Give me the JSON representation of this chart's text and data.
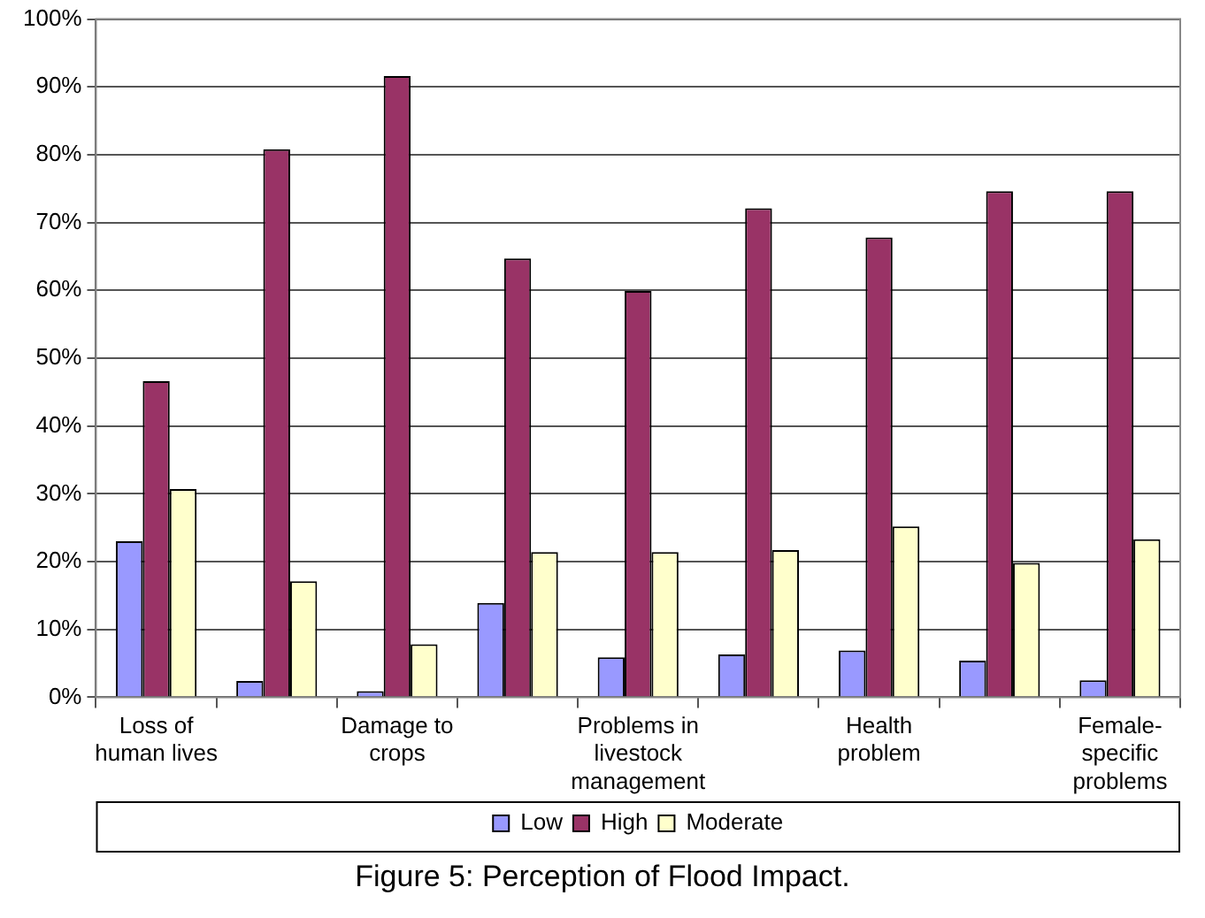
{
  "chart_data": {
    "type": "bar",
    "title": "Figure 5: Perception of Flood Impact.",
    "categories": [
      "Loss of human lives",
      null,
      "Damage to crops",
      null,
      "Problems in livestock management",
      null,
      "Health problem",
      null,
      "Female-specific problems"
    ],
    "series": [
      {
        "name": "Low",
        "color": "#9999ff",
        "values": [
          23,
          2.4,
          0.9,
          13.9,
          5.9,
          6.3,
          6.9,
          5.4,
          2.5
        ]
      },
      {
        "name": "High",
        "color": "#993366",
        "values": [
          46.6,
          80.8,
          91.6,
          64.7,
          59.9,
          72.1,
          67.8,
          74.6,
          74.6
        ]
      },
      {
        "name": "Moderate",
        "color": "#ffffcc",
        "values": [
          30.7,
          17.1,
          7.8,
          21.4,
          21.4,
          21.7,
          25.2,
          19.8,
          23.3
        ]
      }
    ],
    "ylim": [
      0,
      100
    ],
    "yticks": [
      {
        "value": 0,
        "label": "0%"
      },
      {
        "value": 10,
        "label": "10%"
      },
      {
        "value": 20,
        "label": "20%"
      },
      {
        "value": 30,
        "label": "30%"
      },
      {
        "value": 40,
        "label": "40%"
      },
      {
        "value": 50,
        "label": "50%"
      },
      {
        "value": 60,
        "label": "60%"
      },
      {
        "value": 70,
        "label": "70%"
      },
      {
        "value": 80,
        "label": "80%"
      },
      {
        "value": 90,
        "label": "90%"
      },
      {
        "value": 100,
        "label": "100%"
      }
    ],
    "grid": "y",
    "legend": "bottom"
  }
}
